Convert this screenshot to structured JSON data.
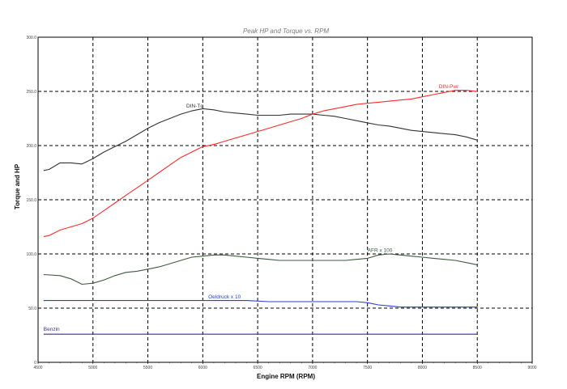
{
  "chart_data": {
    "type": "line",
    "title": "Peak HP and Torque vs. RPM",
    "xlabel": "Engine RPM (RPM)",
    "ylabel": "Torque and HP",
    "xlim": [
      4500,
      9000
    ],
    "ylim": [
      0,
      300
    ],
    "x_ticks": [
      4500,
      5000,
      5500,
      6000,
      6500,
      7000,
      7500,
      8000,
      8500,
      9000
    ],
    "y_ticks": [
      0,
      50,
      100,
      150,
      200,
      250,
      300
    ],
    "x_tick_labels": [
      "4500",
      "5000",
      "5500",
      "6000",
      "6500",
      "7000",
      "7500",
      "8000",
      "8500",
      "9000"
    ],
    "y_tick_labels": [
      "0",
      "50.0",
      "100.0",
      "150.0",
      "200.0",
      "250.0",
      "300.0"
    ],
    "grid": true,
    "series": [
      {
        "name": "DIN-Tq",
        "color": "#333333",
        "x": [
          4550,
          4600,
          4700,
          4800,
          4900,
          5000,
          5100,
          5200,
          5300,
          5400,
          5500,
          5600,
          5700,
          5800,
          5900,
          6000,
          6100,
          6200,
          6300,
          6400,
          6500,
          6600,
          6700,
          6800,
          6900,
          7000,
          7100,
          7200,
          7300,
          7400,
          7500,
          7600,
          7700,
          7800,
          7900,
          8000,
          8100,
          8200,
          8300,
          8400,
          8500
        ],
        "values": [
          177,
          178,
          184,
          184,
          183,
          188,
          194,
          199,
          204,
          210,
          216,
          221,
          225,
          229,
          232,
          234,
          233,
          231,
          230,
          229,
          228,
          228,
          228,
          229,
          229,
          229,
          228,
          227,
          225,
          223,
          221,
          219,
          218,
          216,
          214,
          213,
          212,
          211,
          210,
          208,
          205
        ]
      },
      {
        "name": "DIN-Pwr",
        "color": "#ff2a2a",
        "x": [
          4550,
          4600,
          4700,
          4800,
          4900,
          5000,
          5100,
          5200,
          5300,
          5400,
          5500,
          5600,
          5700,
          5800,
          5900,
          6000,
          6100,
          6200,
          6300,
          6400,
          6500,
          6600,
          6700,
          6800,
          6900,
          7000,
          7100,
          7200,
          7300,
          7400,
          7500,
          7600,
          7700,
          7800,
          7900,
          8000,
          8100,
          8200,
          8300,
          8400,
          8500
        ],
        "values": [
          116,
          117,
          122,
          125,
          128,
          133,
          140,
          147,
          154,
          161,
          168,
          175,
          182,
          189,
          194,
          199,
          201,
          204,
          207,
          210,
          213,
          216,
          219,
          222,
          225,
          229,
          232,
          234,
          236,
          238,
          239,
          240,
          241,
          242,
          243,
          245,
          247,
          249,
          251,
          251,
          250
        ]
      },
      {
        "name": "AFR x 100",
        "color": "#3f5a3f",
        "x": [
          4550,
          4700,
          4800,
          4900,
          5000,
          5100,
          5200,
          5300,
          5400,
          5500,
          5600,
          5700,
          5800,
          5900,
          6000,
          6100,
          6200,
          6300,
          6400,
          6500,
          6600,
          6700,
          6800,
          6900,
          7000,
          7100,
          7200,
          7300,
          7400,
          7500,
          7600,
          7700,
          7800,
          7900,
          8000,
          8100,
          8200,
          8300,
          8400,
          8500
        ],
        "values": [
          81,
          80,
          77,
          72,
          73,
          76,
          80,
          83,
          84,
          86,
          88,
          91,
          94,
          97,
          98,
          99,
          99,
          98,
          97,
          96,
          95,
          94,
          94,
          94,
          94,
          94,
          94,
          94,
          95,
          96,
          99,
          100,
          99,
          98,
          97,
          96,
          95,
          94,
          92,
          90
        ]
      },
      {
        "name": "Oeldruck x 10",
        "color": "#2b3fd8",
        "x": [
          4550,
          4700,
          4900,
          5200,
          5500,
          5800,
          6000,
          6200,
          6400,
          6600,
          6800,
          7000,
          7200,
          7400,
          7500,
          7600,
          7700,
          7800,
          8000,
          8200,
          8500
        ],
        "values": [
          57,
          57,
          57,
          57,
          57,
          57,
          57,
          57,
          57,
          56,
          56,
          56,
          56,
          56,
          55,
          53,
          52,
          51,
          51,
          51,
          51
        ]
      },
      {
        "name": "Benzin",
        "color": "#3a2f86",
        "x": [
          4550,
          5000,
          5500,
          6000,
          6500,
          7000,
          7500,
          8000,
          8500
        ],
        "values": [
          26,
          26,
          26,
          26,
          26,
          26,
          26,
          26,
          26
        ]
      }
    ]
  }
}
